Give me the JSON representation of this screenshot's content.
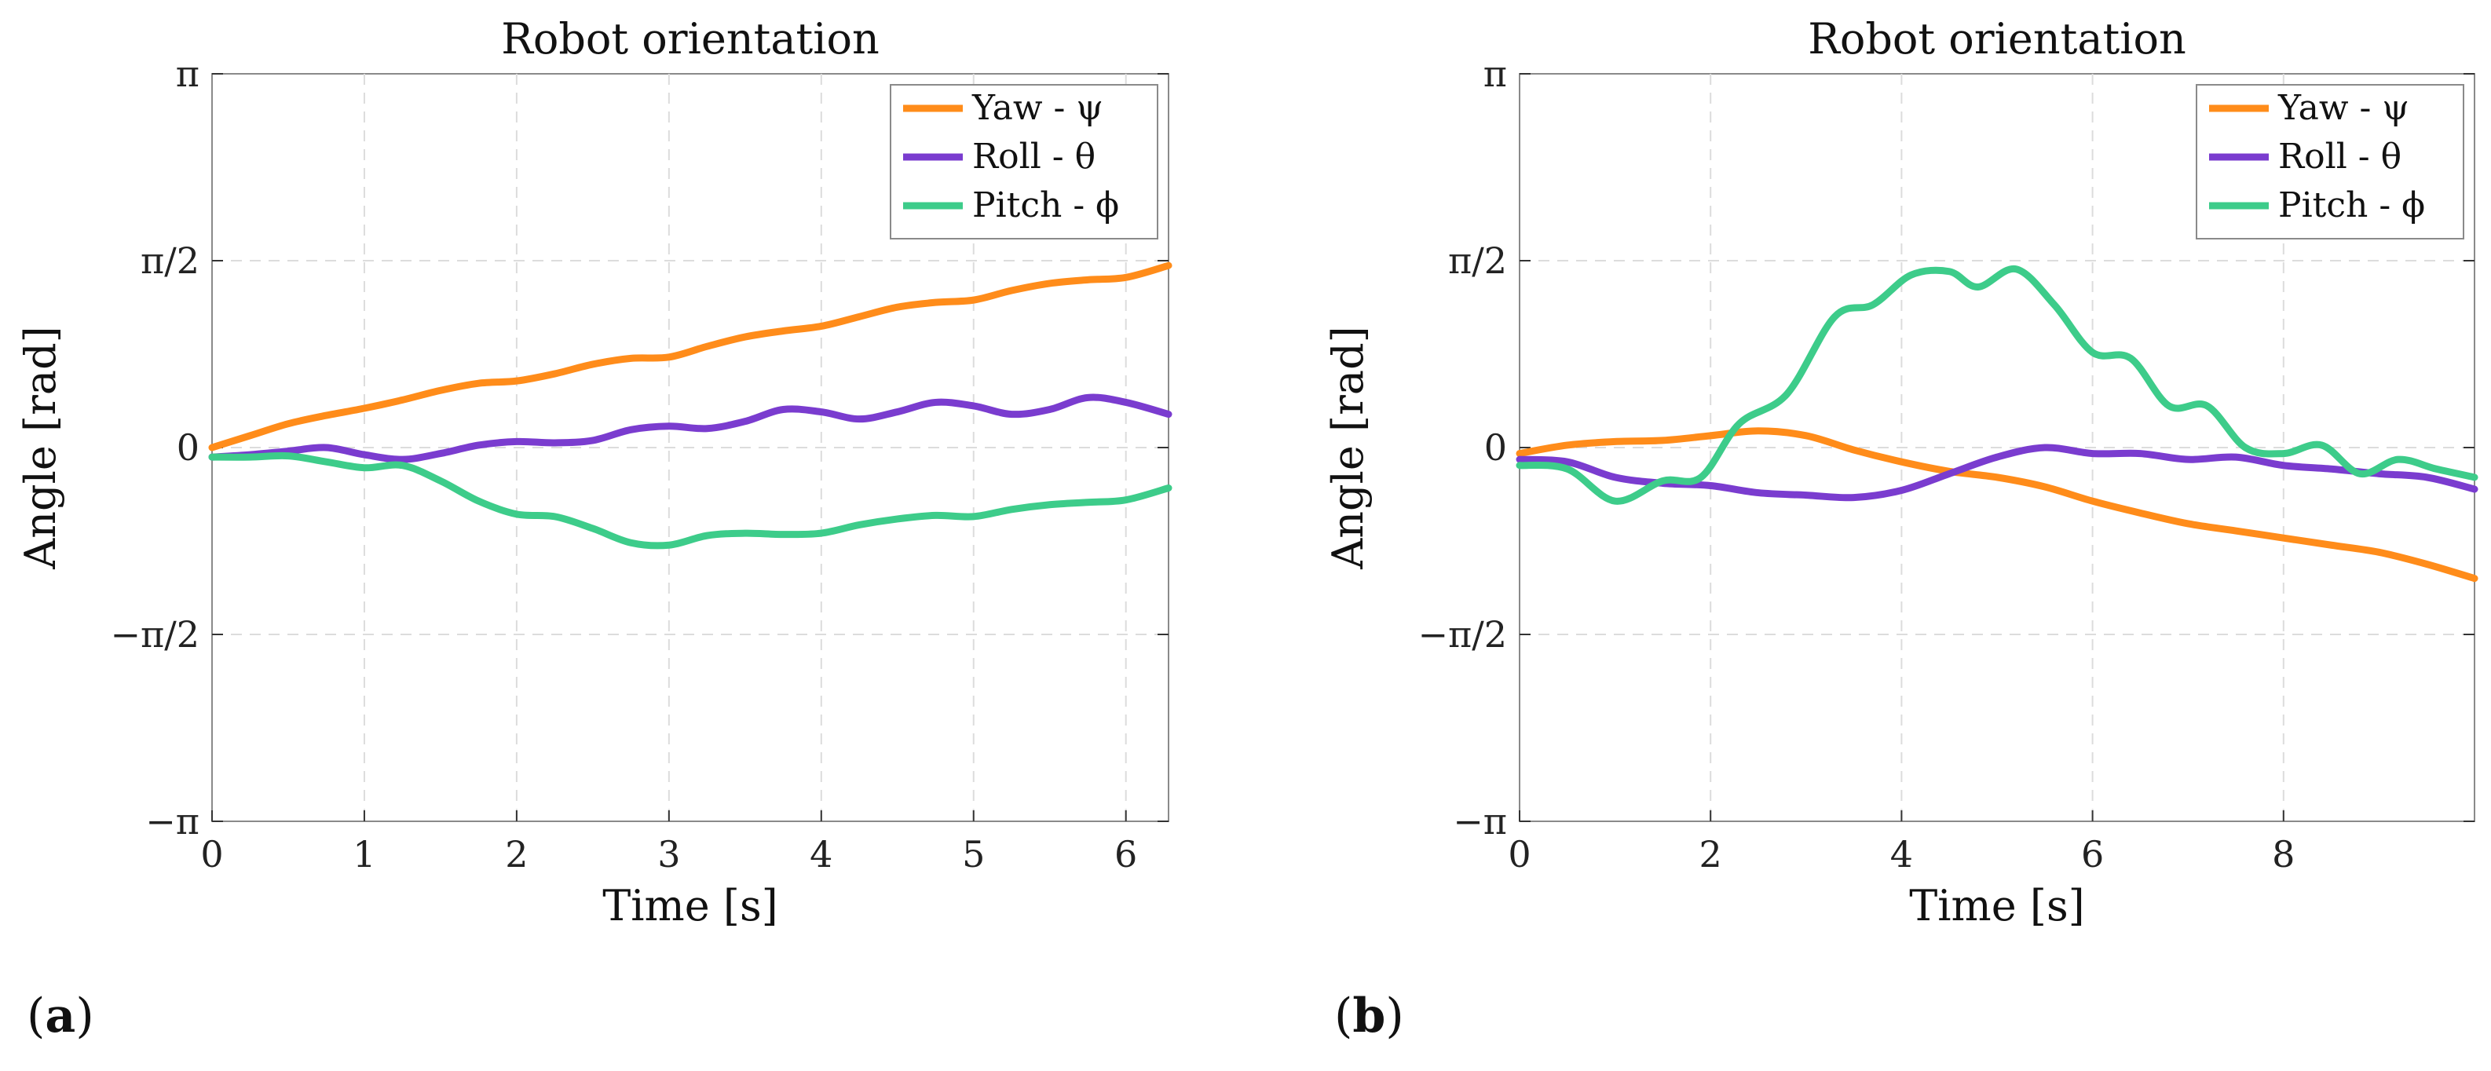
{
  "chart_data": [
    {
      "type": "line",
      "panel": "a",
      "title": "Robot orientation",
      "xlabel": "Time [s]",
      "ylabel": "Angle [rad]",
      "xlim": [
        0,
        6.28
      ],
      "ylim": [
        -3.14159,
        3.14159
      ],
      "xticks": [
        0,
        1,
        2,
        3,
        4,
        5,
        6
      ],
      "xtick_labels": [
        "0",
        "1",
        "2",
        "3",
        "4",
        "5",
        "6"
      ],
      "yticks": [
        -3.14159,
        -1.5708,
        0,
        1.5708,
        3.14159
      ],
      "ytick_labels": [
        "−π",
        "−π/2",
        "0",
        "π/2",
        "π"
      ],
      "grid": true,
      "legend_position": "top-right",
      "series": [
        {
          "name": "Yaw - ψ",
          "color": "#ff8c1a",
          "x": [
            0,
            0.25,
            0.5,
            0.75,
            1.0,
            1.25,
            1.5,
            1.75,
            2.0,
            2.25,
            2.5,
            2.75,
            3.0,
            3.25,
            3.5,
            3.75,
            4.0,
            4.25,
            4.5,
            4.75,
            5.0,
            5.25,
            5.5,
            5.75,
            6.0,
            6.28
          ],
          "y": [
            0.0,
            0.1,
            0.2,
            0.27,
            0.33,
            0.4,
            0.48,
            0.54,
            0.56,
            0.62,
            0.7,
            0.75,
            0.76,
            0.85,
            0.93,
            0.98,
            1.02,
            1.1,
            1.18,
            1.22,
            1.24,
            1.32,
            1.38,
            1.41,
            1.43,
            1.53
          ]
        },
        {
          "name": "Roll - θ",
          "color": "#7a3ccf",
          "x": [
            0,
            0.25,
            0.5,
            0.75,
            1.0,
            1.25,
            1.5,
            1.75,
            2.0,
            2.25,
            2.5,
            2.75,
            3.0,
            3.25,
            3.5,
            3.75,
            4.0,
            4.25,
            4.5,
            4.75,
            5.0,
            5.25,
            5.5,
            5.75,
            6.0,
            6.28
          ],
          "y": [
            -0.08,
            -0.06,
            -0.03,
            0.0,
            -0.06,
            -0.1,
            -0.05,
            0.02,
            0.05,
            0.04,
            0.06,
            0.15,
            0.18,
            0.16,
            0.22,
            0.32,
            0.3,
            0.24,
            0.3,
            0.38,
            0.35,
            0.28,
            0.32,
            0.42,
            0.38,
            0.28
          ]
        },
        {
          "name": "Pitch - ϕ",
          "color": "#3dcc8a",
          "x": [
            0,
            0.25,
            0.5,
            0.75,
            1.0,
            1.25,
            1.5,
            1.75,
            2.0,
            2.25,
            2.5,
            2.75,
            3.0,
            3.25,
            3.5,
            3.75,
            4.0,
            4.25,
            4.5,
            4.75,
            5.0,
            5.25,
            5.5,
            5.75,
            6.0,
            6.28
          ],
          "y": [
            -0.08,
            -0.08,
            -0.07,
            -0.12,
            -0.17,
            -0.15,
            -0.28,
            -0.45,
            -0.56,
            -0.58,
            -0.68,
            -0.8,
            -0.82,
            -0.74,
            -0.72,
            -0.73,
            -0.72,
            -0.65,
            -0.6,
            -0.57,
            -0.58,
            -0.52,
            -0.48,
            -0.46,
            -0.44,
            -0.34
          ]
        }
      ]
    },
    {
      "type": "line",
      "panel": "b",
      "title": "Robot orientation",
      "xlabel": "Time [s]",
      "ylabel": "Angle [rad]",
      "xlim": [
        0,
        10
      ],
      "ylim": [
        -3.14159,
        3.14159
      ],
      "xticks": [
        0,
        2,
        4,
        6,
        8
      ],
      "xtick_labels": [
        "0",
        "2",
        "4",
        "6",
        "8"
      ],
      "yticks": [
        -3.14159,
        -1.5708,
        0,
        1.5708,
        3.14159
      ],
      "ytick_labels": [
        "−π",
        "−π/2",
        "0",
        "π/2",
        "π"
      ],
      "grid": true,
      "legend_position": "top-right",
      "series": [
        {
          "name": "Yaw - ψ",
          "color": "#ff8c1a",
          "x": [
            0,
            0.5,
            1.0,
            1.5,
            2.0,
            2.5,
            3.0,
            3.5,
            4.0,
            4.5,
            5.0,
            5.5,
            6.0,
            6.5,
            7.0,
            7.5,
            8.0,
            8.5,
            9.0,
            9.5,
            10.0
          ],
          "y": [
            -0.05,
            0.02,
            0.05,
            0.06,
            0.1,
            0.14,
            0.1,
            -0.02,
            -0.12,
            -0.2,
            -0.25,
            -0.33,
            -0.45,
            -0.55,
            -0.64,
            -0.7,
            -0.76,
            -0.82,
            -0.88,
            -0.98,
            -1.1
          ]
        },
        {
          "name": "Roll - θ",
          "color": "#7a3ccf",
          "x": [
            0,
            0.5,
            1.0,
            1.5,
            2.0,
            2.5,
            3.0,
            3.5,
            4.0,
            4.5,
            5.0,
            5.5,
            6.0,
            6.5,
            7.0,
            7.5,
            8.0,
            8.5,
            9.0,
            9.5,
            10.0
          ],
          "y": [
            -0.1,
            -0.12,
            -0.25,
            -0.3,
            -0.32,
            -0.38,
            -0.4,
            -0.42,
            -0.36,
            -0.22,
            -0.08,
            0.0,
            -0.05,
            -0.05,
            -0.1,
            -0.08,
            -0.15,
            -0.18,
            -0.22,
            -0.25,
            -0.35
          ]
        },
        {
          "name": "Pitch - ϕ",
          "color": "#3dcc8a",
          "x": [
            0,
            0.5,
            1.0,
            1.5,
            1.9,
            2.3,
            2.8,
            3.3,
            3.7,
            4.1,
            4.5,
            4.8,
            5.2,
            5.6,
            6.0,
            6.4,
            6.8,
            7.2,
            7.6,
            8.0,
            8.4,
            8.8,
            9.2,
            9.6,
            10.0
          ],
          "y": [
            -0.15,
            -0.18,
            -0.45,
            -0.28,
            -0.25,
            0.2,
            0.45,
            1.1,
            1.2,
            1.45,
            1.48,
            1.35,
            1.5,
            1.2,
            0.8,
            0.75,
            0.35,
            0.35,
            0.0,
            -0.05,
            0.02,
            -0.22,
            -0.1,
            -0.18,
            -0.25
          ]
        }
      ]
    }
  ],
  "panel_labels": [
    "a",
    "b"
  ]
}
